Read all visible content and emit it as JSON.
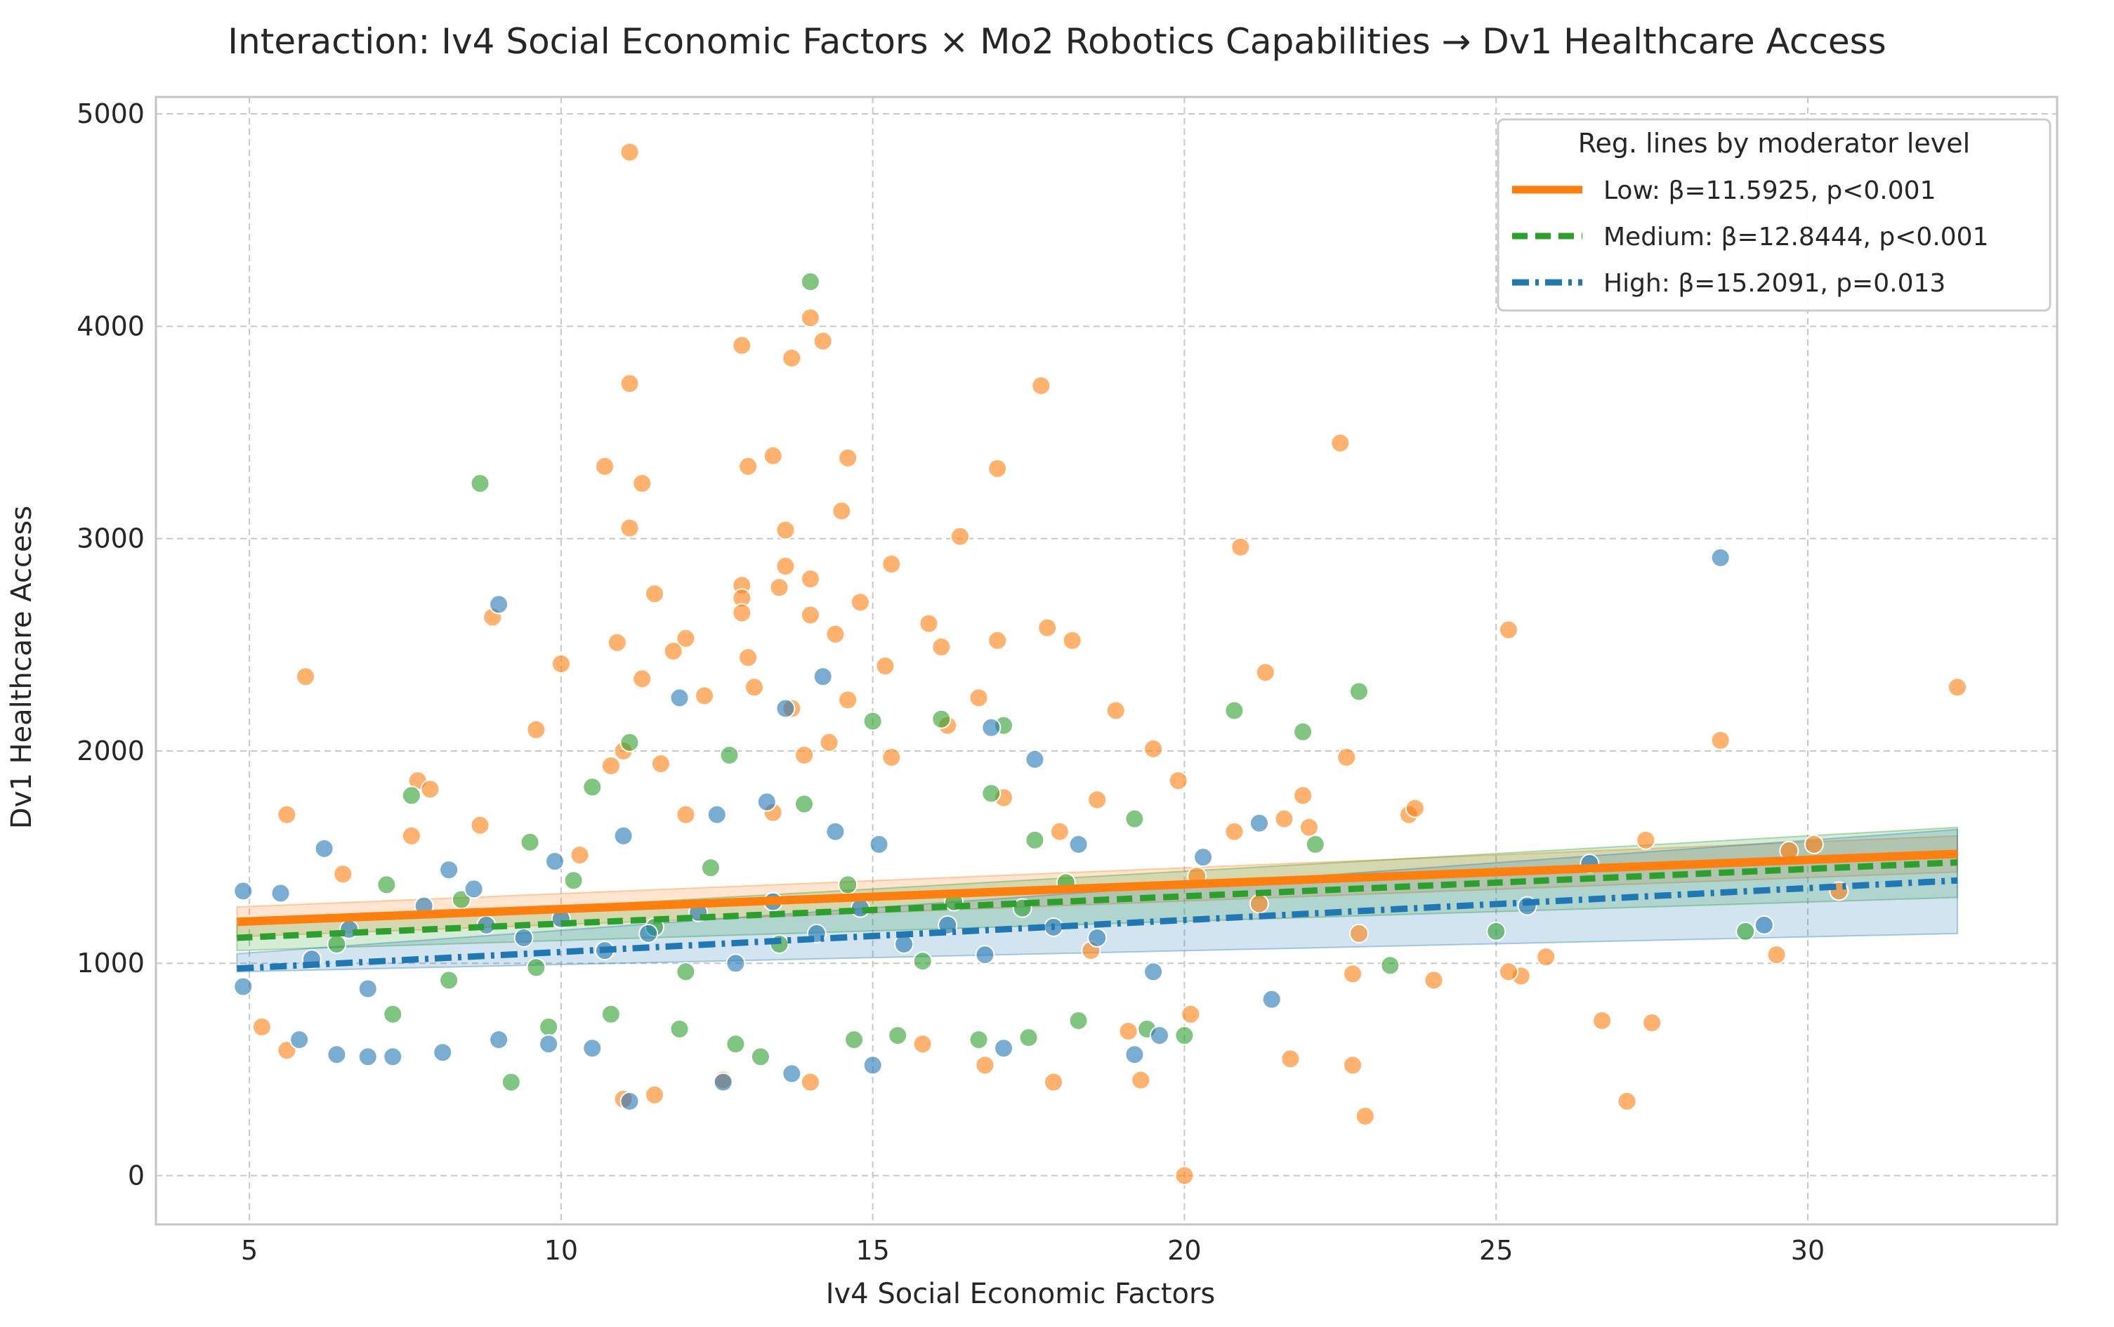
{
  "chart_data": {
    "type": "scatter",
    "title": "Interaction: Iv4 Social Economic Factors × Mo2 Robotics Capabilities → Dv1 Healthcare Access",
    "xlabel": "Iv4 Social Economic Factors",
    "ylabel": "Dv1 Healthcare Access",
    "xlim": [
      3.5,
      34.0
    ],
    "ylim": [
      -230,
      5080
    ],
    "xticks": [
      5,
      10,
      15,
      20,
      25,
      30
    ],
    "yticks": [
      0,
      1000,
      2000,
      3000,
      4000,
      5000
    ],
    "grid": true,
    "legend": {
      "title": "Reg. lines by moderator level",
      "position": "top-right",
      "entries": [
        {
          "label": "Low: β=11.5925, p<0.001",
          "color": "#ff7f0e",
          "style": "solid"
        },
        {
          "label": "Medium: β=12.8444, p<0.001",
          "color": "#2ca02c",
          "style": "dashed"
        },
        {
          "label": "High: β=15.2091, p=0.013",
          "color": "#1f77b4",
          "style": "dashdot"
        }
      ]
    },
    "regression_lines": [
      {
        "name": "Low",
        "color": "#ff7f0e",
        "style": "solid",
        "x": [
          4.8,
          32.4
        ],
        "y": [
          1195,
          1515
        ],
        "ci_lower": [
          1125,
          1430
        ],
        "ci_upper": [
          1265,
          1600
        ]
      },
      {
        "name": "Medium",
        "color": "#2ca02c",
        "style": "dashed",
        "x": [
          4.8,
          32.4
        ],
        "y": [
          1120,
          1475
        ],
        "ci_lower": [
          1060,
          1310
        ],
        "ci_upper": [
          1180,
          1640
        ]
      },
      {
        "name": "High",
        "color": "#1f77b4",
        "style": "dashdot",
        "x": [
          4.8,
          32.4
        ],
        "y": [
          975,
          1390
        ],
        "ci_lower": [
          960,
          1140
        ],
        "ci_upper": [
          1045,
          1630
        ]
      }
    ],
    "series": [
      {
        "name": "Low",
        "color": "#ff7f0e",
        "points": [
          [
            11.1,
            4820
          ],
          [
            14.0,
            4040
          ],
          [
            14.2,
            3930
          ],
          [
            12.9,
            3910
          ],
          [
            13.7,
            3850
          ],
          [
            17.7,
            3720
          ],
          [
            11.1,
            3730
          ],
          [
            22.5,
            3450
          ],
          [
            13.4,
            3390
          ],
          [
            10.7,
            3340
          ],
          [
            13.0,
            3340
          ],
          [
            14.6,
            3380
          ],
          [
            17.0,
            3330
          ],
          [
            11.3,
            3260
          ],
          [
            14.5,
            3130
          ],
          [
            11.1,
            3050
          ],
          [
            13.6,
            3040
          ],
          [
            20.9,
            2960
          ],
          [
            16.4,
            3010
          ],
          [
            15.3,
            2880
          ],
          [
            13.6,
            2870
          ],
          [
            14.0,
            2810
          ],
          [
            12.9,
            2780
          ],
          [
            13.5,
            2770
          ],
          [
            11.5,
            2740
          ],
          [
            14.8,
            2700
          ],
          [
            12.9,
            2720
          ],
          [
            14.0,
            2640
          ],
          [
            8.9,
            2630
          ],
          [
            15.9,
            2600
          ],
          [
            17.8,
            2580
          ],
          [
            14.4,
            2550
          ],
          [
            18.2,
            2520
          ],
          [
            12.9,
            2650
          ],
          [
            12.0,
            2530
          ],
          [
            16.1,
            2490
          ],
          [
            25.2,
            2570
          ],
          [
            17.0,
            2520
          ],
          [
            10.9,
            2510
          ],
          [
            11.8,
            2470
          ],
          [
            13.0,
            2440
          ],
          [
            15.2,
            2400
          ],
          [
            10.0,
            2410
          ],
          [
            21.3,
            2370
          ],
          [
            5.9,
            2350
          ],
          [
            11.3,
            2340
          ],
          [
            32.4,
            2300
          ],
          [
            13.1,
            2300
          ],
          [
            12.3,
            2260
          ],
          [
            16.7,
            2250
          ],
          [
            14.6,
            2240
          ],
          [
            18.9,
            2190
          ],
          [
            13.7,
            2200
          ],
          [
            22.6,
            1970
          ],
          [
            9.6,
            2100
          ],
          [
            16.2,
            2120
          ],
          [
            14.3,
            2040
          ],
          [
            15.3,
            1970
          ],
          [
            11.0,
            2000
          ],
          [
            19.5,
            2010
          ],
          [
            13.9,
            1980
          ],
          [
            28.6,
            2050
          ],
          [
            10.8,
            1930
          ],
          [
            11.6,
            1940
          ],
          [
            7.7,
            1860
          ],
          [
            7.9,
            1820
          ],
          [
            8.7,
            1650
          ],
          [
            19.9,
            1860
          ],
          [
            21.9,
            1790
          ],
          [
            20.8,
            1620
          ],
          [
            21.6,
            1680
          ],
          [
            22.0,
            1640
          ],
          [
            23.6,
            1700
          ],
          [
            23.7,
            1730
          ],
          [
            27.4,
            1580
          ],
          [
            10.3,
            1510
          ],
          [
            12.0,
            1700
          ],
          [
            13.4,
            1710
          ],
          [
            17.1,
            1780
          ],
          [
            18.6,
            1770
          ],
          [
            18.0,
            1620
          ],
          [
            5.6,
            1700
          ],
          [
            7.6,
            1600
          ],
          [
            6.5,
            1420
          ],
          [
            5.2,
            700
          ],
          [
            5.6,
            590
          ],
          [
            20.0,
            0
          ],
          [
            22.9,
            280
          ],
          [
            27.1,
            350
          ],
          [
            20.1,
            760
          ],
          [
            22.7,
            950
          ],
          [
            24.0,
            920
          ],
          [
            25.4,
            940
          ],
          [
            25.8,
            1030
          ],
          [
            26.7,
            730
          ],
          [
            27.5,
            720
          ],
          [
            29.5,
            1040
          ],
          [
            29.7,
            1530
          ],
          [
            30.1,
            1560
          ],
          [
            30.5,
            1340
          ],
          [
            25.2,
            960
          ],
          [
            22.8,
            1140
          ],
          [
            21.7,
            550
          ],
          [
            22.7,
            520
          ],
          [
            19.3,
            450
          ],
          [
            17.9,
            440
          ],
          [
            11.0,
            360
          ],
          [
            11.5,
            380
          ],
          [
            12.6,
            450
          ],
          [
            14.0,
            440
          ],
          [
            16.8,
            520
          ],
          [
            15.8,
            620
          ],
          [
            19.1,
            680
          ],
          [
            21.2,
            1280
          ],
          [
            18.5,
            1060
          ],
          [
            20.2,
            1410
          ]
        ]
      },
      {
        "name": "Medium",
        "color": "#2ca02c",
        "points": [
          [
            14.0,
            4210
          ],
          [
            8.7,
            3260
          ],
          [
            22.8,
            2280
          ],
          [
            20.8,
            2190
          ],
          [
            21.9,
            2090
          ],
          [
            11.1,
            2040
          ],
          [
            15.0,
            2140
          ],
          [
            16.1,
            2150
          ],
          [
            17.1,
            2120
          ],
          [
            7.2,
            1370
          ],
          [
            7.6,
            1790
          ],
          [
            9.5,
            1570
          ],
          [
            10.5,
            1830
          ],
          [
            12.7,
            1980
          ],
          [
            13.9,
            1750
          ],
          [
            16.9,
            1800
          ],
          [
            17.6,
            1580
          ],
          [
            19.2,
            1680
          ],
          [
            22.1,
            1560
          ],
          [
            23.3,
            990
          ],
          [
            25.0,
            1150
          ],
          [
            29.0,
            1150
          ],
          [
            20.0,
            660
          ],
          [
            19.4,
            690
          ],
          [
            18.3,
            730
          ],
          [
            17.5,
            650
          ],
          [
            16.7,
            640
          ],
          [
            15.4,
            660
          ],
          [
            14.7,
            640
          ],
          [
            13.2,
            560
          ],
          [
            12.8,
            620
          ],
          [
            11.9,
            690
          ],
          [
            10.8,
            760
          ],
          [
            9.8,
            700
          ],
          [
            9.2,
            440
          ],
          [
            8.2,
            920
          ],
          [
            7.3,
            760
          ],
          [
            6.4,
            1090
          ],
          [
            8.4,
            1300
          ],
          [
            10.2,
            1390
          ],
          [
            12.4,
            1450
          ],
          [
            14.6,
            1370
          ],
          [
            16.3,
            1290
          ],
          [
            18.1,
            1380
          ],
          [
            11.5,
            1170
          ],
          [
            13.5,
            1090
          ],
          [
            15.8,
            1010
          ],
          [
            9.6,
            980
          ],
          [
            17.4,
            1260
          ],
          [
            12.0,
            960
          ]
        ]
      },
      {
        "name": "High",
        "color": "#1f77b4",
        "points": [
          [
            28.6,
            2910
          ],
          [
            9.0,
            2690
          ],
          [
            14.2,
            2350
          ],
          [
            11.9,
            2250
          ],
          [
            13.6,
            2200
          ],
          [
            16.9,
            2110
          ],
          [
            17.6,
            1960
          ],
          [
            18.3,
            1560
          ],
          [
            20.3,
            1500
          ],
          [
            21.2,
            1660
          ],
          [
            25.5,
            1270
          ],
          [
            26.5,
            1470
          ],
          [
            29.3,
            1180
          ],
          [
            21.4,
            830
          ],
          [
            19.6,
            660
          ],
          [
            19.2,
            570
          ],
          [
            17.1,
            600
          ],
          [
            15.0,
            520
          ],
          [
            13.7,
            480
          ],
          [
            12.6,
            440
          ],
          [
            11.1,
            350
          ],
          [
            10.5,
            600
          ],
          [
            9.8,
            620
          ],
          [
            9.0,
            640
          ],
          [
            8.1,
            580
          ],
          [
            7.3,
            560
          ],
          [
            6.9,
            560
          ],
          [
            6.4,
            570
          ],
          [
            5.8,
            640
          ],
          [
            4.9,
            890
          ],
          [
            4.9,
            1340
          ],
          [
            5.5,
            1330
          ],
          [
            6.2,
            1540
          ],
          [
            6.6,
            1160
          ],
          [
            7.8,
            1270
          ],
          [
            8.2,
            1440
          ],
          [
            8.8,
            1180
          ],
          [
            9.4,
            1120
          ],
          [
            10.0,
            1210
          ],
          [
            10.7,
            1060
          ],
          [
            11.4,
            1140
          ],
          [
            12.2,
            1240
          ],
          [
            12.8,
            1000
          ],
          [
            13.4,
            1290
          ],
          [
            14.1,
            1140
          ],
          [
            14.8,
            1260
          ],
          [
            15.5,
            1090
          ],
          [
            16.2,
            1180
          ],
          [
            16.8,
            1040
          ],
          [
            17.9,
            1170
          ],
          [
            18.6,
            1120
          ],
          [
            19.5,
            960
          ],
          [
            6.0,
            1020
          ],
          [
            6.9,
            880
          ],
          [
            8.6,
            1350
          ],
          [
            9.9,
            1480
          ],
          [
            11.0,
            1600
          ],
          [
            12.5,
            1700
          ],
          [
            13.3,
            1760
          ],
          [
            14.4,
            1620
          ],
          [
            15.1,
            1560
          ]
        ]
      }
    ]
  }
}
